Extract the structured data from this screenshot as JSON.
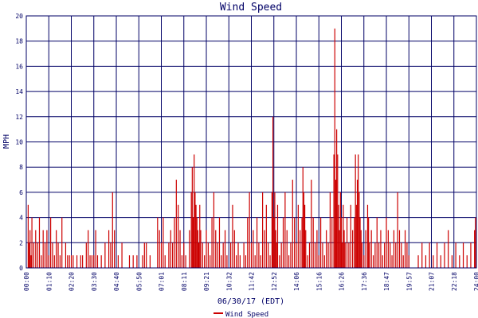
{
  "chart_data": {
    "type": "bar",
    "title": "Wind Speed",
    "xlabel": "06/30/17 (EDT)",
    "ylabel": "MPH",
    "ylim": [
      0,
      20
    ],
    "y_ticks": [
      0,
      2,
      4,
      6,
      8,
      10,
      12,
      14,
      16,
      18,
      20
    ],
    "x_tick_labels": [
      "00:00",
      "01:10",
      "02:20",
      "03:30",
      "04:40",
      "05:50",
      "07:01",
      "08:11",
      "09:21",
      "10:32",
      "11:42",
      "12:52",
      "14:06",
      "15:16",
      "16:26",
      "17:36",
      "18:47",
      "19:57",
      "21:07",
      "22:18",
      "24:00"
    ],
    "x_range_minutes": [
      0,
      1440
    ],
    "grid": true,
    "legend_position": "bottom-center",
    "colors": {
      "series": "#cc0000",
      "grid": "#000066",
      "axis_text": "#000066",
      "title": "#000066",
      "background": "#ffffff"
    },
    "series": [
      {
        "name": "Wind Speed",
        "points": [
          [
            6,
            5
          ],
          [
            9,
            2
          ],
          [
            12,
            3
          ],
          [
            15,
            1
          ],
          [
            18,
            4
          ],
          [
            24,
            2
          ],
          [
            30,
            3
          ],
          [
            36,
            2
          ],
          [
            42,
            4
          ],
          [
            48,
            1
          ],
          [
            54,
            3
          ],
          [
            60,
            2
          ],
          [
            66,
            3
          ],
          [
            72,
            1
          ],
          [
            78,
            4
          ],
          [
            84,
            2
          ],
          [
            90,
            1
          ],
          [
            96,
            3
          ],
          [
            102,
            2
          ],
          [
            108,
            1
          ],
          [
            114,
            4
          ],
          [
            126,
            2
          ],
          [
            132,
            1
          ],
          [
            138,
            1
          ],
          [
            144,
            1
          ],
          [
            150,
            1
          ],
          [
            162,
            1
          ],
          [
            174,
            1
          ],
          [
            180,
            1
          ],
          [
            192,
            2
          ],
          [
            198,
            3
          ],
          [
            204,
            1
          ],
          [
            210,
            1
          ],
          [
            216,
            1
          ],
          [
            222,
            3
          ],
          [
            228,
            1
          ],
          [
            240,
            1
          ],
          [
            252,
            2
          ],
          [
            264,
            3
          ],
          [
            270,
            2
          ],
          [
            276,
            6
          ],
          [
            282,
            3
          ],
          [
            294,
            1
          ],
          [
            306,
            2
          ],
          [
            330,
            1
          ],
          [
            342,
            1
          ],
          [
            354,
            1
          ],
          [
            372,
            1
          ],
          [
            378,
            2
          ],
          [
            384,
            2
          ],
          [
            396,
            1
          ],
          [
            420,
            4
          ],
          [
            426,
            3
          ],
          [
            432,
            2
          ],
          [
            438,
            4
          ],
          [
            444,
            1
          ],
          [
            456,
            2
          ],
          [
            462,
            3
          ],
          [
            468,
            2
          ],
          [
            474,
            4
          ],
          [
            480,
            7
          ],
          [
            486,
            5
          ],
          [
            492,
            3
          ],
          [
            498,
            1
          ],
          [
            504,
            2
          ],
          [
            510,
            1
          ],
          [
            522,
            3
          ],
          [
            528,
            6
          ],
          [
            531,
            8
          ],
          [
            534,
            4
          ],
          [
            537,
            9
          ],
          [
            540,
            6
          ],
          [
            543,
            5
          ],
          [
            546,
            4
          ],
          [
            549,
            3
          ],
          [
            552,
            2
          ],
          [
            555,
            5
          ],
          [
            558,
            3
          ],
          [
            564,
            2
          ],
          [
            570,
            1
          ],
          [
            576,
            3
          ],
          [
            582,
            2
          ],
          [
            588,
            1
          ],
          [
            594,
            4
          ],
          [
            600,
            6
          ],
          [
            606,
            3
          ],
          [
            612,
            2
          ],
          [
            618,
            4
          ],
          [
            624,
            1
          ],
          [
            630,
            2
          ],
          [
            636,
            3
          ],
          [
            642,
            1
          ],
          [
            654,
            2
          ],
          [
            660,
            5
          ],
          [
            666,
            3
          ],
          [
            672,
            1
          ],
          [
            678,
            2
          ],
          [
            684,
            1
          ],
          [
            696,
            2
          ],
          [
            702,
            1
          ],
          [
            708,
            4
          ],
          [
            714,
            6
          ],
          [
            720,
            2
          ],
          [
            726,
            3
          ],
          [
            732,
            1
          ],
          [
            738,
            4
          ],
          [
            744,
            2
          ],
          [
            750,
            1
          ],
          [
            756,
            6
          ],
          [
            762,
            3
          ],
          [
            768,
            5
          ],
          [
            774,
            2
          ],
          [
            780,
            1
          ],
          [
            786,
            6
          ],
          [
            789,
            12
          ],
          [
            792,
            4
          ],
          [
            795,
            6
          ],
          [
            798,
            3
          ],
          [
            801,
            2
          ],
          [
            804,
            5
          ],
          [
            810,
            1
          ],
          [
            816,
            2
          ],
          [
            822,
            4
          ],
          [
            828,
            6
          ],
          [
            834,
            3
          ],
          [
            840,
            1
          ],
          [
            846,
            2
          ],
          [
            852,
            7
          ],
          [
            858,
            4
          ],
          [
            864,
            2
          ],
          [
            870,
            5
          ],
          [
            876,
            3
          ],
          [
            882,
            4
          ],
          [
            885,
            8
          ],
          [
            888,
            6
          ],
          [
            891,
            5
          ],
          [
            894,
            3
          ],
          [
            900,
            1
          ],
          [
            906,
            2
          ],
          [
            912,
            7
          ],
          [
            918,
            4
          ],
          [
            924,
            2
          ],
          [
            930,
            3
          ],
          [
            936,
            1
          ],
          [
            942,
            4
          ],
          [
            948,
            2
          ],
          [
            954,
            1
          ],
          [
            960,
            3
          ],
          [
            966,
            2
          ],
          [
            972,
            6
          ],
          [
            978,
            4
          ],
          [
            984,
            9
          ],
          [
            987,
            19
          ],
          [
            990,
            7
          ],
          [
            993,
            11
          ],
          [
            996,
            9
          ],
          [
            999,
            5
          ],
          [
            1002,
            3
          ],
          [
            1005,
            6
          ],
          [
            1008,
            4
          ],
          [
            1011,
            2
          ],
          [
            1014,
            5
          ],
          [
            1017,
            3
          ],
          [
            1020,
            2
          ],
          [
            1026,
            4
          ],
          [
            1032,
            2
          ],
          [
            1038,
            5
          ],
          [
            1044,
            3
          ],
          [
            1050,
            4
          ],
          [
            1053,
            9
          ],
          [
            1056,
            5
          ],
          [
            1059,
            7
          ],
          [
            1062,
            9
          ],
          [
            1065,
            6
          ],
          [
            1068,
            4
          ],
          [
            1071,
            3
          ],
          [
            1074,
            2
          ],
          [
            1080,
            1
          ],
          [
            1086,
            3
          ],
          [
            1092,
            5
          ],
          [
            1095,
            4
          ],
          [
            1098,
            2
          ],
          [
            1104,
            3
          ],
          [
            1110,
            1
          ],
          [
            1116,
            2
          ],
          [
            1122,
            4
          ],
          [
            1128,
            2
          ],
          [
            1134,
            3
          ],
          [
            1140,
            1
          ],
          [
            1146,
            2
          ],
          [
            1152,
            4
          ],
          [
            1158,
            3
          ],
          [
            1164,
            2
          ],
          [
            1170,
            1
          ],
          [
            1176,
            3
          ],
          [
            1182,
            2
          ],
          [
            1188,
            6
          ],
          [
            1194,
            3
          ],
          [
            1200,
            2
          ],
          [
            1206,
            1
          ],
          [
            1212,
            3
          ],
          [
            1218,
            2
          ],
          [
            1224,
            1
          ],
          [
            1254,
            1
          ],
          [
            1266,
            2
          ],
          [
            1278,
            1
          ],
          [
            1290,
            2
          ],
          [
            1302,
            1
          ],
          [
            1314,
            2
          ],
          [
            1326,
            1
          ],
          [
            1338,
            2
          ],
          [
            1350,
            3
          ],
          [
            1362,
            1
          ],
          [
            1374,
            2
          ],
          [
            1386,
            1
          ],
          [
            1398,
            2
          ],
          [
            1410,
            1
          ],
          [
            1422,
            2
          ],
          [
            1434,
            3
          ],
          [
            1437,
            4
          ]
        ]
      }
    ]
  }
}
